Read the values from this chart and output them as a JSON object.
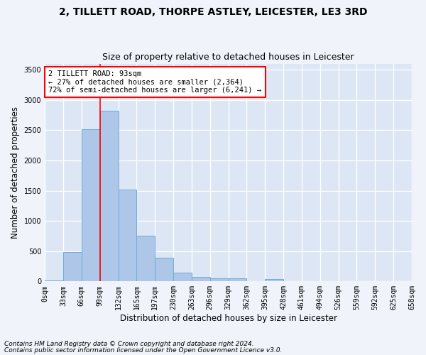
{
  "title1": "2, TILLETT ROAD, THORPE ASTLEY, LEICESTER, LE3 3RD",
  "title2": "Size of property relative to detached houses in Leicester",
  "xlabel": "Distribution of detached houses by size in Leicester",
  "ylabel": "Number of detached properties",
  "bar_color": "#aec6e8",
  "bar_edge_color": "#6baed6",
  "background_color": "#dce6f5",
  "grid_color": "#ffffff",
  "bin_labels": [
    "0sqm",
    "33sqm",
    "66sqm",
    "99sqm",
    "132sqm",
    "165sqm",
    "197sqm",
    "230sqm",
    "263sqm",
    "296sqm",
    "329sqm",
    "362sqm",
    "395sqm",
    "428sqm",
    "461sqm",
    "494sqm",
    "526sqm",
    "559sqm",
    "592sqm",
    "625sqm",
    "658sqm"
  ],
  "bar_values": [
    20,
    480,
    2510,
    2820,
    1520,
    750,
    390,
    145,
    75,
    55,
    55,
    0,
    35,
    0,
    0,
    0,
    0,
    0,
    0,
    0
  ],
  "ylim": [
    0,
    3600
  ],
  "yticks": [
    0,
    500,
    1000,
    1500,
    2000,
    2500,
    3000,
    3500
  ],
  "red_line_x": 3.0,
  "annotation_text": "2 TILLETT ROAD: 93sqm\n← 27% of detached houses are smaller (2,364)\n72% of semi-detached houses are larger (6,241) →",
  "footnote1": "Contains HM Land Registry data © Crown copyright and database right 2024.",
  "footnote2": "Contains public sector information licensed under the Open Government Licence v3.0.",
  "title1_fontsize": 10,
  "title2_fontsize": 9,
  "axis_label_fontsize": 8.5,
  "tick_fontsize": 7,
  "annotation_fontsize": 7.5,
  "footnote_fontsize": 6.5,
  "fig_width": 6.0,
  "fig_height": 5.0,
  "fig_dpi": 100
}
